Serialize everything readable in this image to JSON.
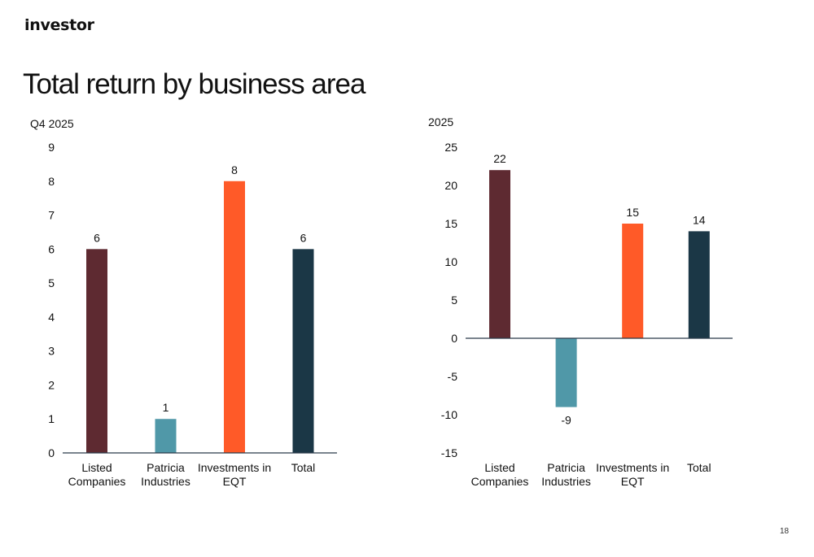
{
  "header": {
    "logo_text": "investor"
  },
  "slide": {
    "title": "Total return by business area",
    "page_number": "18"
  },
  "chart_data": [
    {
      "type": "bar",
      "subtitle": "Q4 2025",
      "categories": [
        [
          "Listed",
          "Companies"
        ],
        [
          "Patricia",
          "Industries"
        ],
        [
          "Investments in",
          "EQT"
        ],
        [
          "Total"
        ]
      ],
      "values": [
        6,
        1,
        8,
        6
      ],
      "data_labels": [
        "6",
        "1",
        "8",
        "6"
      ],
      "ylim": [
        0,
        9
      ],
      "yticks": [
        0,
        1,
        2,
        3,
        4,
        5,
        6,
        7,
        8,
        9
      ],
      "bar_colors": [
        "#5E2A31",
        "#5098A8",
        "#FF5A28",
        "#1B3746"
      ],
      "grid": false
    },
    {
      "type": "bar",
      "subtitle": "2025",
      "categories": [
        [
          "Listed",
          "Companies"
        ],
        [
          "Patricia",
          "Industries"
        ],
        [
          "Investments in",
          "EQT"
        ],
        [
          "Total"
        ]
      ],
      "values": [
        22,
        -9,
        15,
        14
      ],
      "data_labels": [
        "22",
        "-9",
        "15",
        "14"
      ],
      "ylim": [
        -15,
        25
      ],
      "yticks": [
        -15,
        -10,
        -5,
        0,
        5,
        10,
        15,
        20,
        25
      ],
      "bar_colors": [
        "#5E2A31",
        "#5098A8",
        "#FF5A28",
        "#1B3746"
      ],
      "grid": false
    }
  ]
}
